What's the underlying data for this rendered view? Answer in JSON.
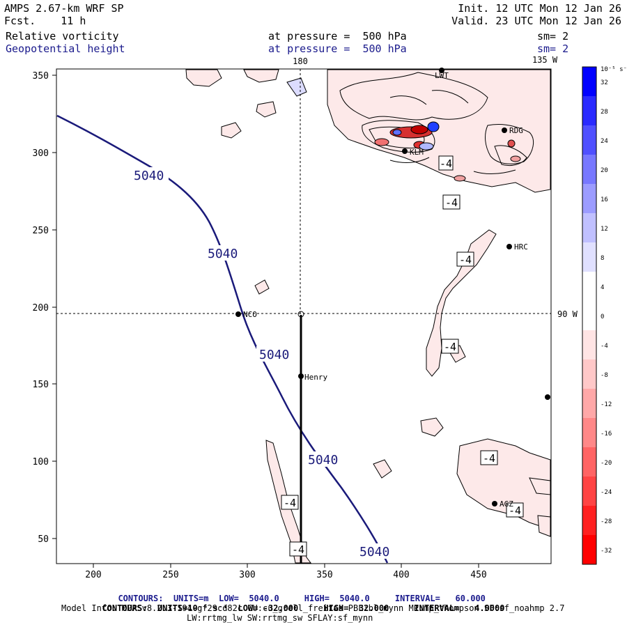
{
  "header": {
    "model": "AMPS 2.67-km WRF SP",
    "fcst_label": "Fcst.",
    "fcst_value": "11 h",
    "init": "Init. 12 UTC Mon 12 Jan 26",
    "valid": "Valid. 23 UTC Mon 12 Jan 26"
  },
  "fields": [
    {
      "name": "Relative vorticity",
      "pressure_text": "at pressure =  500 hPa",
      "sm": "sm= 2"
    },
    {
      "name": "Geopotential height",
      "pressure_text": "at pressure =  500 hPa",
      "sm": "sm= 2"
    }
  ],
  "axes": {
    "x_ticks": [
      "200",
      "250",
      "300",
      "350",
      "400",
      "450"
    ],
    "y_ticks": [
      "350",
      "300",
      "250",
      "200",
      "150",
      "100",
      "50"
    ],
    "top_lon_labels": [
      "180",
      "135 W"
    ],
    "right_lon_label": "90 W"
  },
  "stations": [
    "NCO",
    "Henry",
    "HRC",
    "AGZ",
    "RDG",
    "LWT",
    "KLM"
  ],
  "height_contour_label": "5040",
  "vorticity_labels": [
    "-4",
    "-4",
    "-4",
    "-4",
    "-4",
    "-4",
    "-4",
    "-4"
  ],
  "colorbar": {
    "unit": "10⁻⁵ s⁻¹",
    "ticks": [
      "32",
      "28",
      "24",
      "20",
      "16",
      "12",
      "8",
      "4",
      "0",
      "-4",
      "-8",
      "-12",
      "-16",
      "-20",
      "-24",
      "-28",
      "-32"
    ],
    "colors": [
      "#0000ff",
      "#2a2aff",
      "#5050ff",
      "#7878ff",
      "#9c9cff",
      "#c0c0ff",
      "#e0e0ff",
      "#ffffff",
      "#ffffff",
      "#ffe4e4",
      "#ffc8c8",
      "#ffa8a8",
      "#ff8888",
      "#ff6464",
      "#ff4444",
      "#ff2020",
      "#ff0000"
    ]
  },
  "footer": {
    "line1_label": "CONTOURS:",
    "line1_units": "UNITS=m",
    "line1_low": "LOW=  5040.0",
    "line1_high": "HIGH=  5040.0",
    "line1_interval": "INTERVAL=   60.000",
    "line2_label": "CONTOURS:",
    "line2_units": "UNITS=10⁻⁵ s⁻¹",
    "line2_low": "LOW= -32.000",
    "line2_high": "HIGH=  32.000",
    "line2_interval": "INTERVAL=   4.0000",
    "model_info": "Model Info: MPASv8.2.3-194-gf29cd82c CU:cu_grell_freitas PBL:bl_mynn MP:mp_thompson SF:sf_noahmp 2.7",
    "model_info2": "LW:rrtmg_lw SW:rrtmg_sw SFLAY:sf_mynn"
  },
  "colors": {
    "height_contour": "#1a1a7a",
    "field2_text": "#1a1aa0",
    "footer_blue": "#1a1a8c"
  }
}
